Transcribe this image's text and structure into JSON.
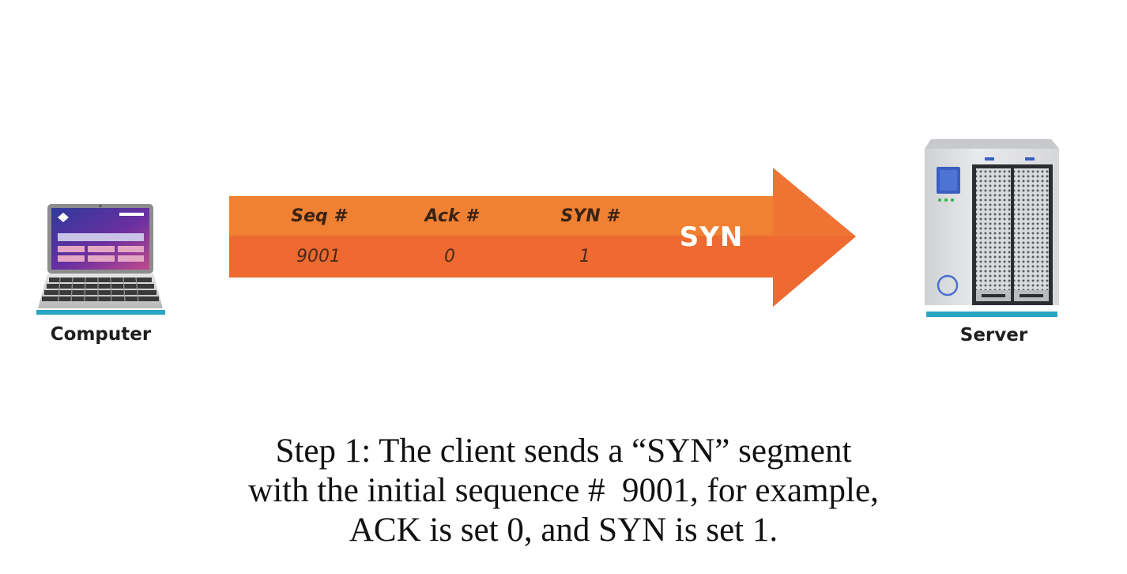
{
  "devices": {
    "client_label": "Computer",
    "server_label": "Server"
  },
  "segment": {
    "name": "SYN",
    "fields": [
      {
        "label": "Seq #",
        "value": "9001"
      },
      {
        "label": "Ack #",
        "value": "0"
      },
      {
        "label": "SYN #",
        "value": "1"
      }
    ],
    "colors": {
      "arrow_top": "#f08133",
      "arrow_bottom": "#ee6a30"
    }
  },
  "caption": {
    "lines": [
      "Step 1: The client sends a “SYN” segment",
      "with the initial sequence #  9001, for example,",
      "ACK is set 0, and SYN is set 1."
    ]
  }
}
